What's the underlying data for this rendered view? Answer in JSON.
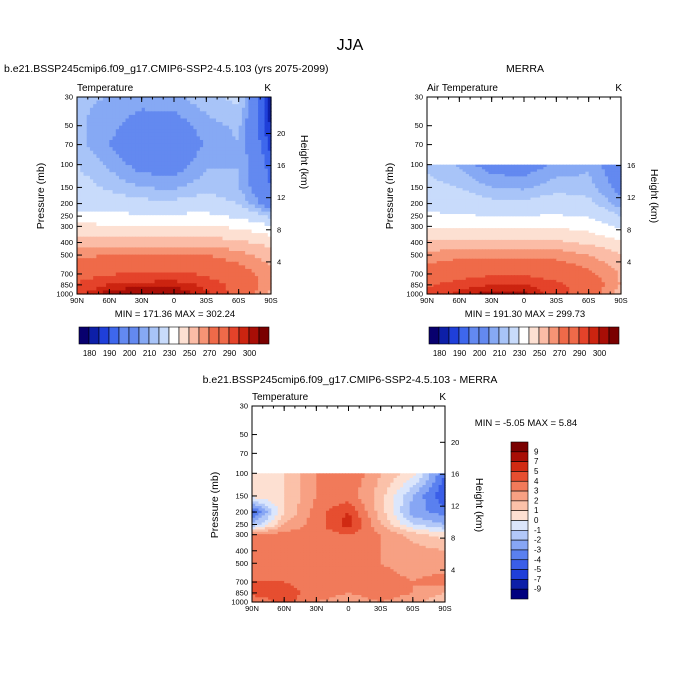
{
  "figure_title": "JJA",
  "colors": {
    "ramp": [
      "#08006e",
      "#0d1fa8",
      "#1f3fd9",
      "#3e67ec",
      "#6389f0",
      "#86a9f4",
      "#a8c4f8",
      "#c8dbfb",
      "#ffffff",
      "#fde0d2",
      "#fbbca6",
      "#f69475",
      "#ef6a49",
      "#e4432a",
      "#cc2410",
      "#a80e06",
      "#7a0000"
    ]
  },
  "chart_data": [
    {
      "type": "heatmap",
      "title": "b.e21.BSSP245cmip6.f09_g17.CMIP6-SSP2-4.5.103 (yrs 2075-2099)",
      "left_label": "Temperature",
      "right_label": "K",
      "xlabel": "",
      "ylabel": "Pressure (mb)",
      "y2label": "Height (km)",
      "x_ticks": [
        "90N",
        "60N",
        "30N",
        "0",
        "30S",
        "60S",
        "90S"
      ],
      "y_ticks": [
        "30",
        "50",
        "70",
        "100",
        "150",
        "200",
        "250",
        "300",
        "400",
        "500",
        "700",
        "850",
        "1000"
      ],
      "y2_ticks": [
        "20",
        "16",
        "12",
        "8",
        "4"
      ],
      "stats": "MIN = 171.36   MAX = 302.24",
      "colorbar": {
        "orientation": "horizontal",
        "labels": [
          "180",
          "190",
          "200",
          "210",
          "230",
          "250",
          "270",
          "290",
          "300"
        ],
        "levels": [
          175,
          180,
          185,
          190,
          195,
          200,
          205,
          210,
          220,
          230,
          240,
          250,
          260,
          270,
          280,
          290,
          295,
          300
        ]
      },
      "ylim": [
        1000,
        30
      ],
      "x_lat": [
        90,
        60,
        30,
        0,
        -30,
        -60,
        -90
      ],
      "p_levels": [
        30,
        50,
        70,
        100,
        150,
        200,
        250,
        300,
        400,
        500,
        700,
        850,
        1000
      ],
      "values": [
        [
          206,
          205,
          203,
          204,
          208,
          212,
          176
        ],
        [
          206,
          202,
          196,
          196,
          203,
          206,
          179
        ],
        [
          207,
          200,
          193,
          192,
          201,
          205,
          183
        ],
        [
          210,
          204,
          197,
          196,
          204,
          205,
          187
        ],
        [
          213,
          209,
          205,
          204,
          208,
          205,
          190
        ],
        [
          216,
          214,
          212,
          212,
          214,
          210,
          195
        ],
        [
          224,
          222,
          222,
          222,
          222,
          218,
          208
        ],
        [
          232,
          232,
          231,
          231,
          231,
          228,
          221
        ],
        [
          246,
          246,
          246,
          245,
          245,
          242,
          237
        ],
        [
          257,
          260,
          261,
          261,
          260,
          254,
          245
        ],
        [
          272,
          279,
          282,
          283,
          278,
          267,
          254
        ],
        [
          283,
          291,
          293,
          294,
          288,
          274,
          252
        ],
        [
          288,
          298,
          301,
          300,
          292,
          275,
          246
        ]
      ]
    },
    {
      "type": "heatmap",
      "title": "MERRA",
      "left_label": "Air Temperature",
      "right_label": "K",
      "xlabel": "",
      "ylabel": "Pressure (mb)",
      "y2label": "Height (km)",
      "x_ticks": [
        "90N",
        "60N",
        "30N",
        "0",
        "30S",
        "60S",
        "90S"
      ],
      "y_ticks": [
        "30",
        "50",
        "70",
        "100",
        "150",
        "200",
        "250",
        "300",
        "400",
        "500",
        "700",
        "850",
        "1000"
      ],
      "y2_ticks": [
        "16",
        "12",
        "8",
        "4"
      ],
      "stats": "MIN = 191.30   MAX = 299.73",
      "colorbar": {
        "orientation": "horizontal",
        "labels": [
          "180",
          "190",
          "200",
          "210",
          "230",
          "250",
          "270",
          "290",
          "300"
        ],
        "levels": [
          175,
          180,
          185,
          190,
          195,
          200,
          205,
          210,
          220,
          230,
          240,
          250,
          260,
          270,
          280,
          290,
          295,
          300
        ]
      },
      "ylim": [
        1000,
        30
      ],
      "data_top_mb": 100,
      "x_lat": [
        90,
        60,
        30,
        0,
        -30,
        -60,
        -90
      ],
      "p_levels": [
        100,
        150,
        200,
        250,
        300,
        400,
        500,
        700,
        850,
        1000
      ],
      "values": [
        [
          209,
          204,
          196,
          196,
          201,
          204,
          194
        ],
        [
          212,
          210,
          205,
          204,
          208,
          207,
          197
        ],
        [
          216,
          215,
          212,
          212,
          214,
          212,
          202
        ],
        [
          222,
          221,
          220,
          220,
          221,
          219,
          210
        ],
        [
          228,
          229,
          228,
          228,
          229,
          226,
          218
        ],
        [
          242,
          243,
          243,
          242,
          242,
          238,
          232
        ],
        [
          253,
          256,
          257,
          257,
          256,
          250,
          241
        ],
        [
          268,
          274,
          278,
          278,
          273,
          263,
          249
        ],
        [
          278,
          286,
          290,
          291,
          284,
          270,
          249
        ],
        [
          283,
          293,
          298,
          297,
          287,
          272,
          243
        ]
      ]
    },
    {
      "type": "heatmap",
      "title": "b.e21.BSSP245cmip6.f09_g17.CMIP6-SSP2-4.5.103 - MERRA",
      "left_label": "Temperature",
      "right_label": "K",
      "xlabel": "",
      "ylabel": "Pressure (mb)",
      "y2label": "Height (km)",
      "x_ticks": [
        "90N",
        "60N",
        "30N",
        "0",
        "30S",
        "60S",
        "90S"
      ],
      "y_ticks": [
        "30",
        "50",
        "70",
        "100",
        "150",
        "200",
        "250",
        "300",
        "400",
        "500",
        "700",
        "850",
        "1000"
      ],
      "y2_ticks": [
        "20",
        "16",
        "12",
        "8",
        "4"
      ],
      "stats": "MIN =  -5.05   MAX =   5.84",
      "colorbar": {
        "orientation": "vertical",
        "labels": [
          "9",
          "7",
          "5",
          "4",
          "3",
          "2",
          "1",
          "0",
          "-1",
          "-2",
          "-3",
          "-4",
          "-5",
          "-7",
          "-9"
        ],
        "levels": [
          -9,
          -7,
          -5,
          -4,
          -3,
          -2,
          -1,
          0,
          1,
          2,
          3,
          4,
          5,
          7,
          9
        ]
      },
      "ylim": [
        1000,
        30
      ],
      "data_top_mb": 100,
      "x_lat": [
        90,
        60,
        30,
        0,
        -30,
        -60,
        -90
      ],
      "p_levels": [
        100,
        150,
        200,
        250,
        300,
        400,
        500,
        700,
        850,
        1000
      ],
      "values": [
        [
          1.0,
          1.0,
          3.0,
          4.0,
          2.0,
          0.5,
          -4.0
        ],
        [
          0.5,
          1.0,
          3.0,
          3.5,
          1.5,
          -2.0,
          -5.0
        ],
        [
          -4.5,
          1.0,
          3.5,
          5.0,
          1.5,
          -2.5,
          -3.5
        ],
        [
          -2.0,
          2.0,
          3.5,
          5.5,
          2.0,
          -1.0,
          -2.0
        ],
        [
          3.0,
          3.5,
          3.5,
          4.0,
          3.0,
          1.5,
          0.5
        ],
        [
          3.5,
          3.5,
          3.5,
          3.5,
          3.0,
          2.5,
          2.0
        ],
        [
          3.5,
          3.5,
          3.5,
          3.5,
          3.0,
          2.5,
          2.5
        ],
        [
          4.0,
          4.0,
          3.5,
          3.5,
          3.5,
          3.0,
          3.5
        ],
        [
          4.5,
          4.5,
          3.5,
          3.0,
          3.5,
          3.0,
          2.0
        ],
        [
          3.0,
          4.5,
          3.0,
          2.5,
          3.0,
          2.5,
          1.0
        ]
      ]
    }
  ]
}
